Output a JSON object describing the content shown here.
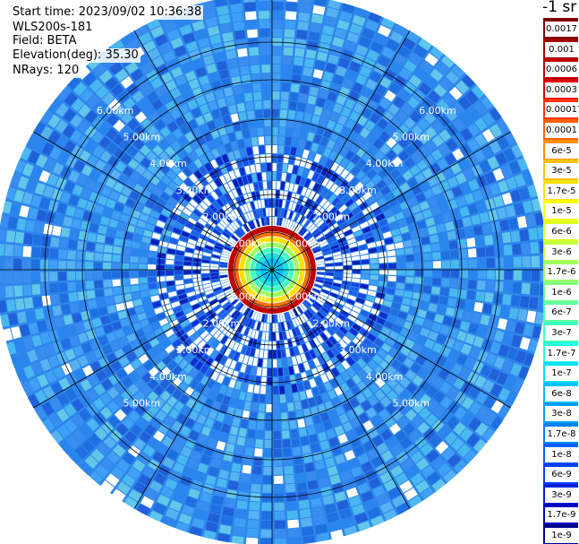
{
  "info": {
    "start_time": "Start time: 2023/09/02 10:36:38",
    "instrument": "WLS200s-181",
    "field": "Field: BETA",
    "elevation": "Elevation(deg): 35.30",
    "nrays": "NRays: 120"
  },
  "colorbar": {
    "unit": "-1 sr",
    "labels": [
      "0.0017",
      "0.001",
      "0.0006",
      "0.0003",
      "0.00017",
      "0.0001",
      "6e-5",
      "3e-5",
      "1.7e-5",
      "1e-5",
      "6e-6",
      "3e-6",
      "1.7e-6",
      "1e-6",
      "6e-7",
      "3e-7",
      "1.7e-7",
      "1e-7",
      "6e-8",
      "3e-8",
      "1.7e-8",
      "1e-8",
      "6e-9",
      "3e-9",
      "1.7e-9",
      "1e-9"
    ],
    "colors": [
      "#800000",
      "#a00000",
      "#c00000",
      "#e00000",
      "#ff3000",
      "#ff6000",
      "#ff9000",
      "#ffc000",
      "#ffe000",
      "#ffff00",
      "#e0ff20",
      "#c0ff40",
      "#a0ff60",
      "#80ff80",
      "#60ffa0",
      "#40ffc0",
      "#20ffe0",
      "#00e0ff",
      "#00c0ff",
      "#00a0ff",
      "#0080ff",
      "#0060ff",
      "#0040ff",
      "#0020e0",
      "#0000c0",
      "#000090"
    ]
  },
  "rings": {
    "labels": [
      "1.00km",
      "2.00km",
      "3.00km",
      "4.00km",
      "5.00km",
      "6.00km"
    ]
  },
  "ppi": {
    "nrays": 120,
    "inner_hotspot_km": 0.7
  }
}
